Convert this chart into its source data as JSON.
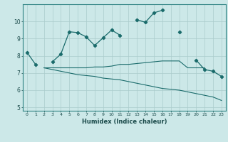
{
  "xlabel": "Humidex (Indice chaleur)",
  "x_values": [
    0,
    1,
    2,
    3,
    4,
    5,
    6,
    7,
    8,
    9,
    10,
    11,
    12,
    13,
    14,
    15,
    16,
    17,
    18,
    19,
    20,
    21,
    22,
    23
  ],
  "line1_y": [
    8.2,
    7.5,
    null,
    7.65,
    8.1,
    9.4,
    9.35,
    9.1,
    8.6,
    9.05,
    9.5,
    9.2,
    null,
    10.1,
    9.95,
    10.5,
    10.65,
    null,
    9.4,
    null,
    7.75,
    7.2,
    7.1,
    6.8
  ],
  "line2_y": [
    null,
    null,
    7.3,
    7.3,
    7.3,
    7.3,
    7.3,
    7.3,
    7.35,
    7.35,
    7.4,
    7.5,
    7.5,
    7.55,
    7.6,
    7.65,
    7.7,
    7.7,
    7.7,
    7.3,
    7.3,
    7.3,
    null,
    null
  ],
  "line3_y": [
    null,
    null,
    7.3,
    7.2,
    7.1,
    7.0,
    6.9,
    6.85,
    6.8,
    6.7,
    6.65,
    6.6,
    6.5,
    6.4,
    6.3,
    6.2,
    6.1,
    6.05,
    6.0,
    5.9,
    5.8,
    5.7,
    5.6,
    5.4
  ],
  "line_color": "#1a6b6b",
  "bg_color": "#cce8e8",
  "grid_color": "#aacccc",
  "ylim": [
    4.8,
    11.0
  ],
  "yticks": [
    5,
    6,
    7,
    8,
    9,
    10
  ],
  "xlim": [
    -0.5,
    23.5
  ]
}
